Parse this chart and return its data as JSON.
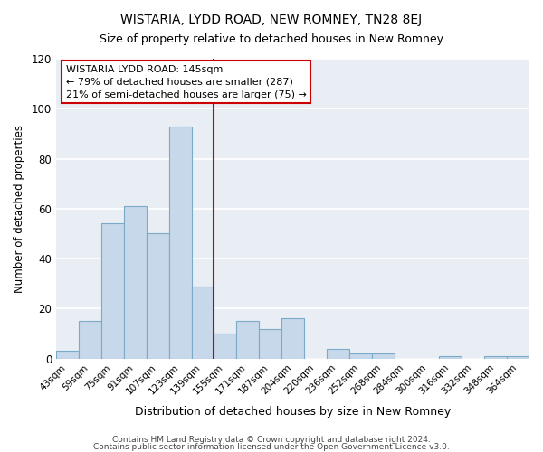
{
  "title": "WISTARIA, LYDD ROAD, NEW ROMNEY, TN28 8EJ",
  "subtitle": "Size of property relative to detached houses in New Romney",
  "xlabel": "Distribution of detached houses by size in New Romney",
  "ylabel": "Number of detached properties",
  "categories": [
    "43sqm",
    "59sqm",
    "75sqm",
    "91sqm",
    "107sqm",
    "123sqm",
    "139sqm",
    "155sqm",
    "171sqm",
    "187sqm",
    "204sqm",
    "220sqm",
    "236sqm",
    "252sqm",
    "268sqm",
    "284sqm",
    "300sqm",
    "316sqm",
    "332sqm",
    "348sqm",
    "364sqm"
  ],
  "values": [
    3,
    15,
    54,
    61,
    50,
    93,
    29,
    10,
    15,
    12,
    16,
    0,
    4,
    2,
    2,
    0,
    0,
    1,
    0,
    1,
    1
  ],
  "bar_color": "#c8d8eb",
  "bar_edge_color": "#7aaac8",
  "vline_x": 6.5,
  "vline_color": "#cc0000",
  "annotation_line1": "WISTARIA LYDD ROAD: 145sqm",
  "annotation_line2": "← 79% of detached houses are smaller (287)",
  "annotation_line3": "21% of semi-detached houses are larger (75) →",
  "annotation_box_color": "#ffffff",
  "annotation_box_edge_color": "#cc0000",
  "ylim": [
    0,
    120
  ],
  "yticks": [
    0,
    20,
    40,
    60,
    80,
    100,
    120
  ],
  "footer1": "Contains HM Land Registry data © Crown copyright and database right 2024.",
  "footer2": "Contains public sector information licensed under the Open Government Licence v3.0.",
  "background_color": "#ffffff",
  "plot_bg_color": "#e8eef4",
  "grid_color": "#ffffff"
}
